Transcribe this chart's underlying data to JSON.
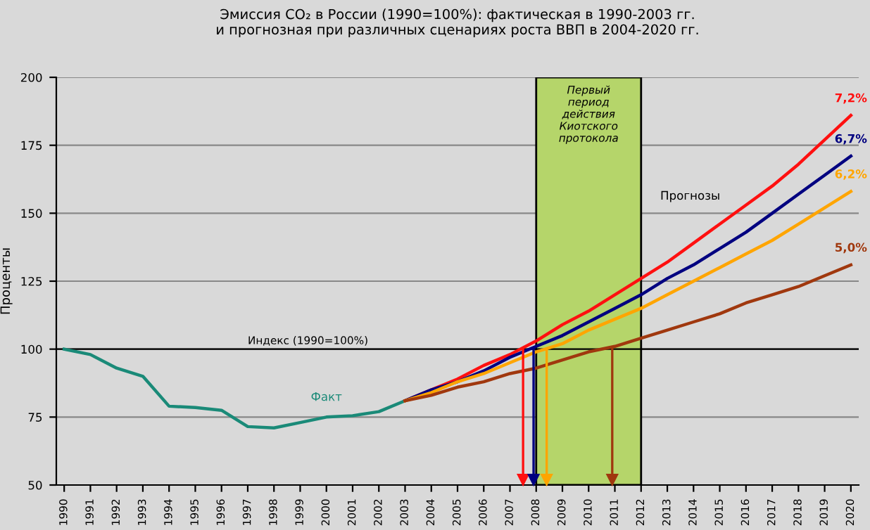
{
  "chart_data": {
    "type": "line",
    "title": "Эмиссия CO₂ в России (1990=100%): фактическая в 1990-2003 гг.\nи прогнозная при различных сценариях роста ВВП в 2004-2020 гг.",
    "ylabel": "Проценты",
    "xlim": [
      1989.7,
      2020.3
    ],
    "xticks": [
      1990,
      1991,
      1992,
      1993,
      1994,
      1995,
      1996,
      1997,
      1998,
      1999,
      2000,
      2001,
      2002,
      2003,
      2004,
      2005,
      2006,
      2007,
      2008,
      2009,
      2010,
      2011,
      2012,
      2013,
      2014,
      2015,
      2016,
      2017,
      2018,
      2019,
      2020
    ],
    "ylim": [
      50,
      200
    ],
    "yticks": [
      50,
      75,
      100,
      125,
      150,
      175,
      200
    ],
    "grid": "y",
    "line_style": "solid",
    "series": [
      {
        "name": "Факт",
        "color": "#1a8a78",
        "x": [
          1990,
          1991,
          1992,
          1993,
          1994,
          1995,
          1996,
          1997,
          1998,
          1999,
          2000,
          2001,
          2002,
          2003
        ],
        "values": [
          100,
          98,
          93,
          90,
          79,
          78.5,
          77.5,
          71.5,
          71,
          73,
          75,
          75.5,
          77,
          81
        ]
      },
      {
        "name": "7,2%",
        "color": "#ff1010",
        "x": [
          2003,
          2004,
          2005,
          2006,
          2007,
          2008,
          2009,
          2010,
          2011,
          2012,
          2013,
          2014,
          2015,
          2016,
          2017,
          2018,
          2019,
          2020
        ],
        "values": [
          81,
          85,
          89,
          94,
          98,
          103,
          109,
          114,
          120,
          126,
          132,
          139,
          146,
          153,
          160,
          168,
          177,
          186
        ]
      },
      {
        "name": "6,7%",
        "color": "#000080",
        "x": [
          2003,
          2004,
          2005,
          2006,
          2007,
          2008,
          2009,
          2010,
          2011,
          2012,
          2013,
          2014,
          2015,
          2016,
          2017,
          2018,
          2019,
          2020
        ],
        "values": [
          81,
          85,
          88,
          92,
          97,
          101,
          105,
          110,
          115,
          120,
          126,
          131,
          137,
          143,
          150,
          157,
          164,
          171
        ]
      },
      {
        "name": "6,2%",
        "color": "#ffa500",
        "x": [
          2003,
          2004,
          2005,
          2006,
          2007,
          2008,
          2009,
          2010,
          2011,
          2012,
          2013,
          2014,
          2015,
          2016,
          2017,
          2018,
          2019,
          2020
        ],
        "values": [
          81,
          84,
          88,
          91,
          95,
          99,
          102,
          107,
          111,
          115,
          120,
          125,
          130,
          135,
          140,
          146,
          152,
          158
        ]
      },
      {
        "name": "5,0%",
        "color": "#a0380e",
        "x": [
          2003,
          2004,
          2005,
          2006,
          2007,
          2008,
          2009,
          2010,
          2011,
          2012,
          2013,
          2014,
          2015,
          2016,
          2017,
          2018,
          2019,
          2020
        ],
        "values": [
          81,
          83,
          86,
          88,
          91,
          93,
          96,
          99,
          101,
          104,
          107,
          110,
          113,
          117,
          120,
          123,
          127,
          131
        ]
      }
    ],
    "ref_lines": [
      {
        "axis": "y",
        "value": 100,
        "label": "Индекс (1990=100%)",
        "color": "#000000"
      },
      {
        "axis": "x",
        "value": 2007.5,
        "color": "#ff1010"
      },
      {
        "axis": "x",
        "value": 2007.9,
        "color": "#000080"
      },
      {
        "axis": "x",
        "value": 2008.4,
        "color": "#ffa500"
      },
      {
        "axis": "x",
        "value": 2010.9,
        "color": "#a0380e"
      }
    ],
    "bands": [
      {
        "axis": "x",
        "from": 2008,
        "to": 2012,
        "label": "Первый\nпериод\nдействия\nКиотского\nпротокола",
        "color": "#b5d56a"
      }
    ],
    "annotations": [
      "Прогнозы"
    ]
  }
}
